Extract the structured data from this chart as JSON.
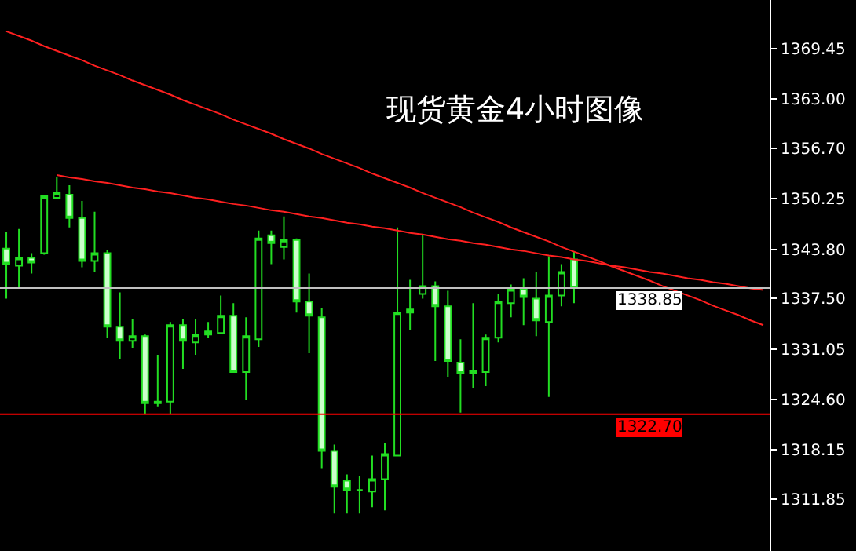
{
  "chart_data": {
    "type": "candlestick",
    "title": "现货黄金4小时图像",
    "categories": [
      null,
      null,
      null,
      null,
      null,
      null,
      null,
      null,
      null,
      null,
      null,
      null,
      null,
      null,
      null,
      null,
      null,
      null,
      null,
      null,
      null,
      null,
      null,
      null,
      null,
      null,
      null,
      null,
      null,
      null,
      null,
      null,
      null,
      null,
      null,
      null,
      null,
      null,
      null,
      null,
      null,
      null,
      null,
      null,
      null,
      null,
      null,
      null,
      null,
      null,
      null,
      null,
      null,
      null,
      null,
      null,
      null,
      null,
      null,
      null,
      null
    ],
    "color": "#22dd22",
    "ohlc": [
      [
        1343.9,
        1346.0,
        1337.5,
        1341.9
      ],
      [
        1341.7,
        1346.4,
        1338.9,
        1342.7
      ],
      [
        1342.7,
        1343.3,
        1340.7,
        1342.1
      ],
      [
        1343.3,
        1350.6,
        1343.1,
        1350.6
      ],
      [
        1350.4,
        1353.0,
        1350.4,
        1351.0
      ],
      [
        1350.8,
        1352.0,
        1346.6,
        1347.8
      ],
      [
        1347.8,
        1350.0,
        1341.5,
        1342.3
      ],
      [
        1342.3,
        1348.6,
        1340.9,
        1343.3
      ],
      [
        1343.3,
        1343.7,
        1332.5,
        1333.9
      ],
      [
        1333.9,
        1338.3,
        1329.7,
        1332.1
      ],
      [
        1332.1,
        1334.9,
        1331.1,
        1332.7
      ],
      [
        1332.7,
        1332.9,
        1322.7,
        1324.1
      ],
      [
        1324.3,
        1330.3,
        1323.7,
        1324.1
      ],
      [
        1324.3,
        1334.5,
        1322.7,
        1334.1
      ],
      [
        1334.1,
        1334.9,
        1328.5,
        1332.1
      ],
      [
        1331.9,
        1334.9,
        1330.3,
        1332.9
      ],
      [
        1332.9,
        1334.5,
        1332.5,
        1333.3
      ],
      [
        1333.1,
        1337.9,
        1333.1,
        1335.3
      ],
      [
        1335.3,
        1336.9,
        1328.1,
        1328.1
      ],
      [
        1328.1,
        1335.1,
        1324.5,
        1332.7
      ],
      [
        1332.3,
        1346.2,
        1331.3,
        1345.2
      ],
      [
        1345.6,
        1346.2,
        1341.9,
        1344.6
      ],
      [
        1344.1,
        1348.0,
        1342.5,
        1345.0
      ],
      [
        1345.0,
        1345.2,
        1335.7,
        1337.1
      ],
      [
        1337.1,
        1340.7,
        1330.5,
        1335.3
      ],
      [
        1335.1,
        1336.3,
        1315.8,
        1318.0
      ],
      [
        1318.0,
        1318.8,
        1310.0,
        1313.4
      ],
      [
        1314.2,
        1315.0,
        1310.0,
        1313.0
      ],
      [
        1313.0,
        1314.8,
        1310.0,
        1313.0
      ],
      [
        1312.8,
        1317.4,
        1310.8,
        1314.4
      ],
      [
        1314.4,
        1319.0,
        1310.4,
        1317.6
      ],
      [
        1317.4,
        1346.6,
        1317.4,
        1335.7
      ],
      [
        1335.7,
        1339.9,
        1333.5,
        1336.1
      ],
      [
        1338.1,
        1345.6,
        1337.5,
        1339.1
      ],
      [
        1339.1,
        1339.7,
        1329.5,
        1336.5
      ],
      [
        1336.5,
        1338.5,
        1327.5,
        1329.5
      ],
      [
        1329.3,
        1332.3,
        1322.9,
        1327.9
      ],
      [
        1327.9,
        1336.9,
        1326.1,
        1328.3
      ],
      [
        1328.1,
        1332.9,
        1326.3,
        1332.5
      ],
      [
        1332.5,
        1338.1,
        1331.9,
        1337.1
      ],
      [
        1336.9,
        1339.3,
        1335.1,
        1338.7
      ],
      [
        1338.7,
        1340.1,
        1334.1,
        1337.7
      ],
      [
        1337.5,
        1340.9,
        1332.7,
        1334.7
      ],
      [
        1334.5,
        1342.9,
        1324.9,
        1337.9
      ],
      [
        1337.9,
        1341.9,
        1336.5,
        1340.9
      ],
      [
        1342.5,
        1343.5,
        1336.9,
        1338.85
      ],
      null,
      null,
      null,
      null,
      null,
      null,
      null,
      null,
      null,
      null,
      null,
      null,
      null,
      null,
      null
    ],
    "series": [
      {
        "type": "line",
        "color": "#ff2020",
        "values": [
          1371.7,
          1371.1,
          1370.5,
          1369.8,
          1369.2,
          1368.6,
          1368.0,
          1367.3,
          1366.7,
          1366.1,
          1365.4,
          1364.8,
          1364.2,
          1363.6,
          1362.9,
          1362.3,
          1361.7,
          1361.1,
          1360.4,
          1359.8,
          1359.2,
          1358.6,
          1357.9,
          1357.3,
          1356.7,
          1356.0,
          1355.4,
          1354.8,
          1354.2,
          1353.5,
          1352.9,
          1352.3,
          1351.7,
          1351.0,
          1350.4,
          1349.8,
          1349.2,
          1348.5,
          1347.9,
          1347.3,
          1346.6,
          1346.0,
          1345.4,
          1344.8,
          1344.1,
          1343.5,
          1342.9,
          1342.3,
          1341.6,
          1341.0,
          1340.4,
          1339.8,
          1339.1,
          1338.5,
          1337.9,
          1337.3,
          1336.6,
          1336.0,
          1335.4,
          1334.7,
          1334.1
        ]
      },
      {
        "type": "line",
        "color": "#ff2020",
        "values": [
          null,
          null,
          null,
          null,
          1353.3,
          1353.0,
          1352.8,
          1352.5,
          1352.3,
          1352.0,
          1351.7,
          1351.5,
          1351.2,
          1351.0,
          1350.7,
          1350.4,
          1350.2,
          1349.9,
          1349.6,
          1349.4,
          1349.1,
          1348.8,
          1348.6,
          1348.3,
          1348.0,
          1347.8,
          1347.5,
          1347.2,
          1347.0,
          1346.7,
          1346.5,
          1346.2,
          1345.9,
          1345.7,
          1345.4,
          1345.1,
          1344.9,
          1344.6,
          1344.4,
          1344.1,
          1343.8,
          1343.6,
          1343.3,
          1343.0,
          1342.8,
          1342.5,
          1342.3,
          1342.0,
          1341.7,
          1341.5,
          1341.2,
          1340.9,
          1340.7,
          1340.4,
          1340.1,
          1339.9,
          1339.6,
          1339.4,
          1339.1,
          1338.8,
          1338.6
        ]
      }
    ],
    "ref_lines": [
      {
        "axis": "y",
        "value": 1338.85,
        "label": "1338.85",
        "color": "#c0c0c0"
      },
      {
        "axis": "y",
        "value": 1322.7,
        "label": "1322.70",
        "color": "#ff0000"
      }
    ],
    "ylim": [
      1305.2,
      1375.7
    ],
    "yticks": [
      1311.85,
      1318.15,
      {
        "value": 1324.6,
        "label": "1324.60"
      },
      1331.05,
      {
        "value": 1337.5,
        "label": "1337.50"
      },
      {
        "value": 1343.8,
        "label": "1343.80"
      },
      1350.25,
      {
        "value": 1356.7,
        "label": "1356.70"
      },
      {
        "value": 1363,
        "label": "1363.00"
      },
      1369.45
    ],
    "tick_labels": "y",
    "grid": false
  }
}
